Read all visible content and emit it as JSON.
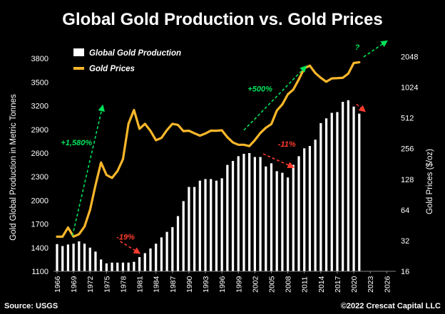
{
  "chart_data": {
    "type": "bar",
    "title": "Global Gold Production vs. Gold Prices",
    "ylabel": "Gold Global Production in Metric Tonnes",
    "y2label": "Gold Prices ($/oz)",
    "xlim": [
      1966,
      2027
    ],
    "ylim": [
      1100,
      4000
    ],
    "y2_scale": "log2",
    "y2lim": [
      16,
      2800
    ],
    "y_ticks": [
      1100,
      1400,
      1700,
      2000,
      2300,
      2600,
      2900,
      3200,
      3500,
      3800
    ],
    "y2_ticks": [
      16,
      32,
      64,
      128,
      256,
      512,
      1024,
      2048
    ],
    "x_ticks": [
      1966,
      1969,
      1972,
      1975,
      1978,
      1981,
      1984,
      1987,
      1990,
      1993,
      1996,
      1999,
      2002,
      2005,
      2008,
      2011,
      2014,
      2017,
      2020,
      2023,
      2026
    ],
    "grid": false,
    "legend_position": "top-left",
    "series": [
      {
        "name": "Global Gold Production",
        "type": "bar",
        "axis": "left",
        "color": "#ffffff",
        "x": [
          1966,
          1967,
          1968,
          1969,
          1970,
          1971,
          1972,
          1973,
          1974,
          1975,
          1976,
          1977,
          1978,
          1979,
          1980,
          1981,
          1982,
          1983,
          1984,
          1985,
          1986,
          1987,
          1988,
          1989,
          1990,
          1991,
          1992,
          1993,
          1994,
          1995,
          1996,
          1997,
          1998,
          1999,
          2000,
          2001,
          2002,
          2003,
          2004,
          2005,
          2006,
          2007,
          2008,
          2009,
          2010,
          2011,
          2012,
          2013,
          2014,
          2015,
          2016,
          2017,
          2018,
          2019,
          2020,
          2021
        ],
        "values": [
          1445,
          1420,
          1440,
          1450,
          1480,
          1450,
          1400,
          1350,
          1250,
          1200,
          1210,
          1210,
          1210,
          1210,
          1220,
          1280,
          1330,
          1390,
          1450,
          1530,
          1600,
          1660,
          1800,
          1990,
          2170,
          2170,
          2250,
          2270,
          2270,
          2250,
          2280,
          2450,
          2500,
          2560,
          2590,
          2600,
          2550,
          2550,
          2430,
          2470,
          2370,
          2350,
          2290,
          2450,
          2560,
          2660,
          2690,
          2770,
          2980,
          3040,
          3110,
          3120,
          3250,
          3270,
          3190,
          3100
        ]
      },
      {
        "name": "Gold Prices",
        "type": "line",
        "axis": "right",
        "color": "#f9b72a",
        "x": [
          1966,
          1967,
          1968,
          1969,
          1970,
          1971,
          1972,
          1973,
          1974,
          1975,
          1976,
          1977,
          1978,
          1979,
          1980,
          1981,
          1982,
          1983,
          1984,
          1985,
          1986,
          1987,
          1988,
          1989,
          1990,
          1991,
          1992,
          1993,
          1994,
          1995,
          1996,
          1997,
          1998,
          1999,
          2000,
          2001,
          2002,
          2003,
          2004,
          2005,
          2006,
          2007,
          2008,
          2009,
          2010,
          2011,
          2012,
          2013,
          2014,
          2015,
          2016,
          2017,
          2018,
          2019,
          2020,
          2021
        ],
        "values": [
          35,
          35,
          43,
          35,
          37,
          44,
          64,
          112,
          187,
          141,
          132,
          154,
          202,
          448,
          612,
          400,
          448,
          382,
          309,
          326,
          389,
          448,
          437,
          380,
          383,
          362,
          343,
          360,
          384,
          383,
          387,
          331,
          294,
          279,
          279,
          271,
          310,
          364,
          410,
          445,
          604,
          695,
          872,
          972,
          1224,
          1571,
          1669,
          1411,
          1266,
          1160,
          1250,
          1257,
          1268,
          1393,
          1770,
          1800
        ]
      }
    ],
    "annotations": [
      {
        "text": "+1,580%",
        "color": "#00e35a",
        "x": 1968,
        "y": 360,
        "axis": "right"
      },
      {
        "text": "-19%",
        "color": "#ff3b30",
        "x": 1974,
        "y": 1600,
        "axis": "left"
      },
      {
        "text": "+500%",
        "color": "#00e35a",
        "x": 2001,
        "y": 1400,
        "axis": "right"
      },
      {
        "text": "-11%",
        "color": "#ff3b30",
        "x": 2006,
        "y": 2700,
        "axis": "left"
      },
      {
        "text": "?",
        "color": "#00e35a",
        "x": 2020,
        "y": 4200,
        "axis": "right"
      }
    ]
  },
  "footer": {
    "source": "Source: USGS",
    "copyright": "©2022 Crescat Capital LLC"
  }
}
